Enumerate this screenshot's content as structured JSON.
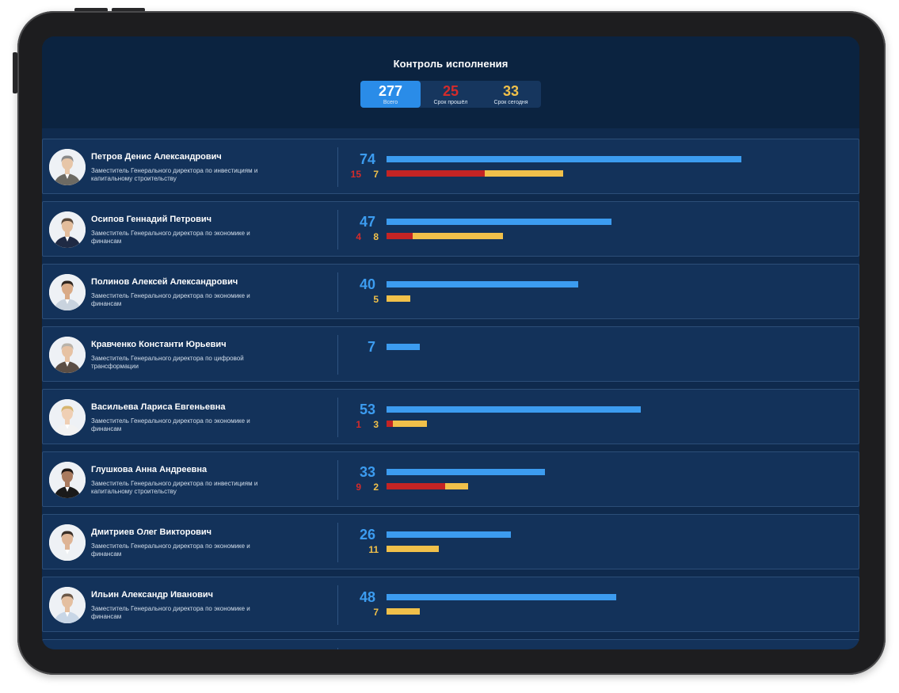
{
  "header": {
    "title": "Контроль исполнения",
    "tabs": [
      {
        "value": "277",
        "label": "Всего",
        "color": "#ffffff"
      },
      {
        "value": "25",
        "label": "Срок прошёл",
        "color": "#d42b2b"
      },
      {
        "value": "33",
        "label": "Срок сегодня",
        "color": "#f0c04a"
      }
    ],
    "active_tab": 0
  },
  "colors": {
    "total": "#3c9cf0",
    "overdue": "#c42424",
    "today": "#f0c04a"
  },
  "employees": [
    {
      "name": "Петров Денис Александрович",
      "position": "Заместитель Генерального директора по инвестициям и капитальному строительству",
      "total": 74,
      "overdue": 15,
      "today": 7,
      "avatar": {
        "skin": "#e7c6a8",
        "hair": "#8a8a8a",
        "suit": "#6d6a63"
      }
    },
    {
      "name": "Осипов Геннадий Петрович",
      "position": "Заместитель Генерального директора по экономике и финансам",
      "total": 47,
      "overdue": 4,
      "today": 8,
      "avatar": {
        "skin": "#e3bd9c",
        "hair": "#5a4a3c",
        "suit": "#1f2a44"
      }
    },
    {
      "name": "Полинов Алексей Александрович",
      "position": "Заместитель Генерального директора по экономике и финансам",
      "total": 40,
      "overdue": null,
      "today": 5,
      "avatar": {
        "skin": "#d9aa86",
        "hair": "#2f2620",
        "suit": "#c9d3de"
      }
    },
    {
      "name": "Кравченко Константи Юрьевич",
      "position": "Заместитель Генерального директора по цифровой трансформации",
      "total": 7,
      "overdue": null,
      "today": null,
      "avatar": {
        "skin": "#e6c2a3",
        "hair": "#b9b3aa",
        "suit": "#5b4e45"
      }
    },
    {
      "name": "Васильева Лариса Евгеньевна",
      "position": "Заместитель Генерального директора по экономике и финансам",
      "total": 53,
      "overdue": 1,
      "today": 3,
      "avatar": {
        "skin": "#efcfb4",
        "hair": "#d6b56e",
        "suit": "#f2f2f2"
      }
    },
    {
      "name": "Глушкова Анна Андреевна",
      "position": "Заместитель Генерального директора по инвестициям и капитальному строительству",
      "total": 33,
      "overdue": 9,
      "today": 2,
      "avatar": {
        "skin": "#a97a5e",
        "hair": "#1e1714",
        "suit": "#1a1a1a"
      }
    },
    {
      "name": "Дмитриев Олег Викторович",
      "position": "Заместитель Генерального директора по экономике и финансам",
      "total": 26,
      "overdue": null,
      "today": 11,
      "avatar": {
        "skin": "#deb495",
        "hair": "#3a2f28",
        "suit": "#eef1f4"
      }
    },
    {
      "name": "Ильин Александр Иванович",
      "position": "Заместитель Генерального директора по экономике и финансам",
      "total": 48,
      "overdue": null,
      "today": 7,
      "avatar": {
        "skin": "#e4bfa0",
        "hair": "#6b5848",
        "suit": "#c8d6e6"
      }
    }
  ]
}
